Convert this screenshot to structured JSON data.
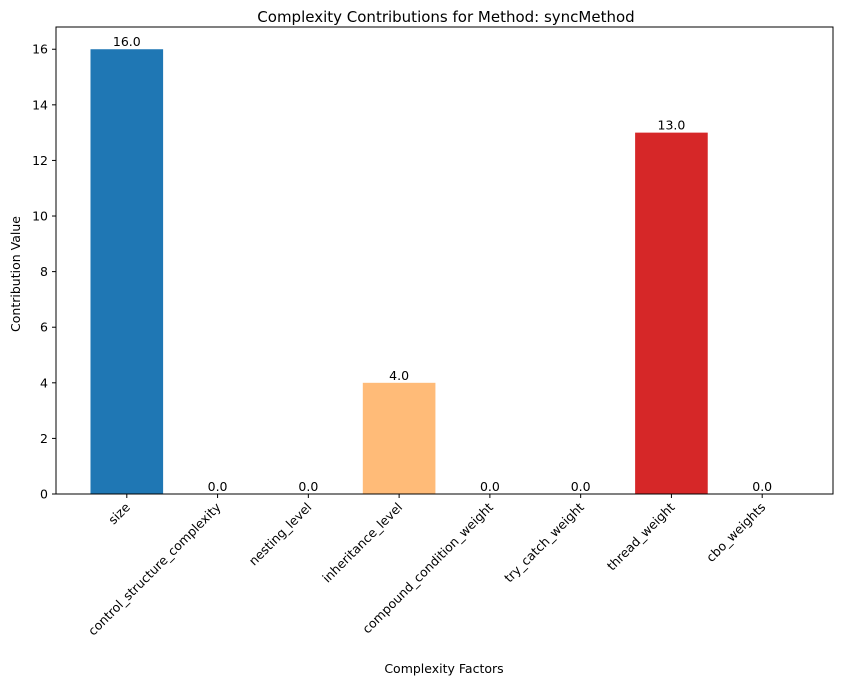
{
  "chart_data": {
    "type": "bar",
    "title": "Complexity Contributions for Method: syncMethod",
    "xlabel": "Complexity Factors",
    "ylabel": "Contribution Value",
    "categories": [
      "size",
      "control_structure_complexity",
      "nesting_level",
      "inheritance_level",
      "compound_condition_weight",
      "try_catch_weight",
      "thread_weight",
      "cbo_weights"
    ],
    "values": [
      16.0,
      0.0,
      0.0,
      4.0,
      0.0,
      0.0,
      13.0,
      0.0
    ],
    "value_labels": [
      "16.0",
      "0.0",
      "0.0",
      "4.0",
      "0.0",
      "0.0",
      "13.0",
      "0.0"
    ],
    "colors": [
      "#1f77b4",
      "#aec7e8",
      "#ff7f0e",
      "#ffbb78",
      "#2ca02c",
      "#98df8a",
      "#d62728",
      "#ff9896"
    ],
    "yticks": [
      "0",
      "2",
      "4",
      "6",
      "8",
      "10",
      "12",
      "14",
      "16"
    ],
    "ylim": [
      0,
      16.8
    ],
    "grid": false,
    "legend": "none"
  }
}
